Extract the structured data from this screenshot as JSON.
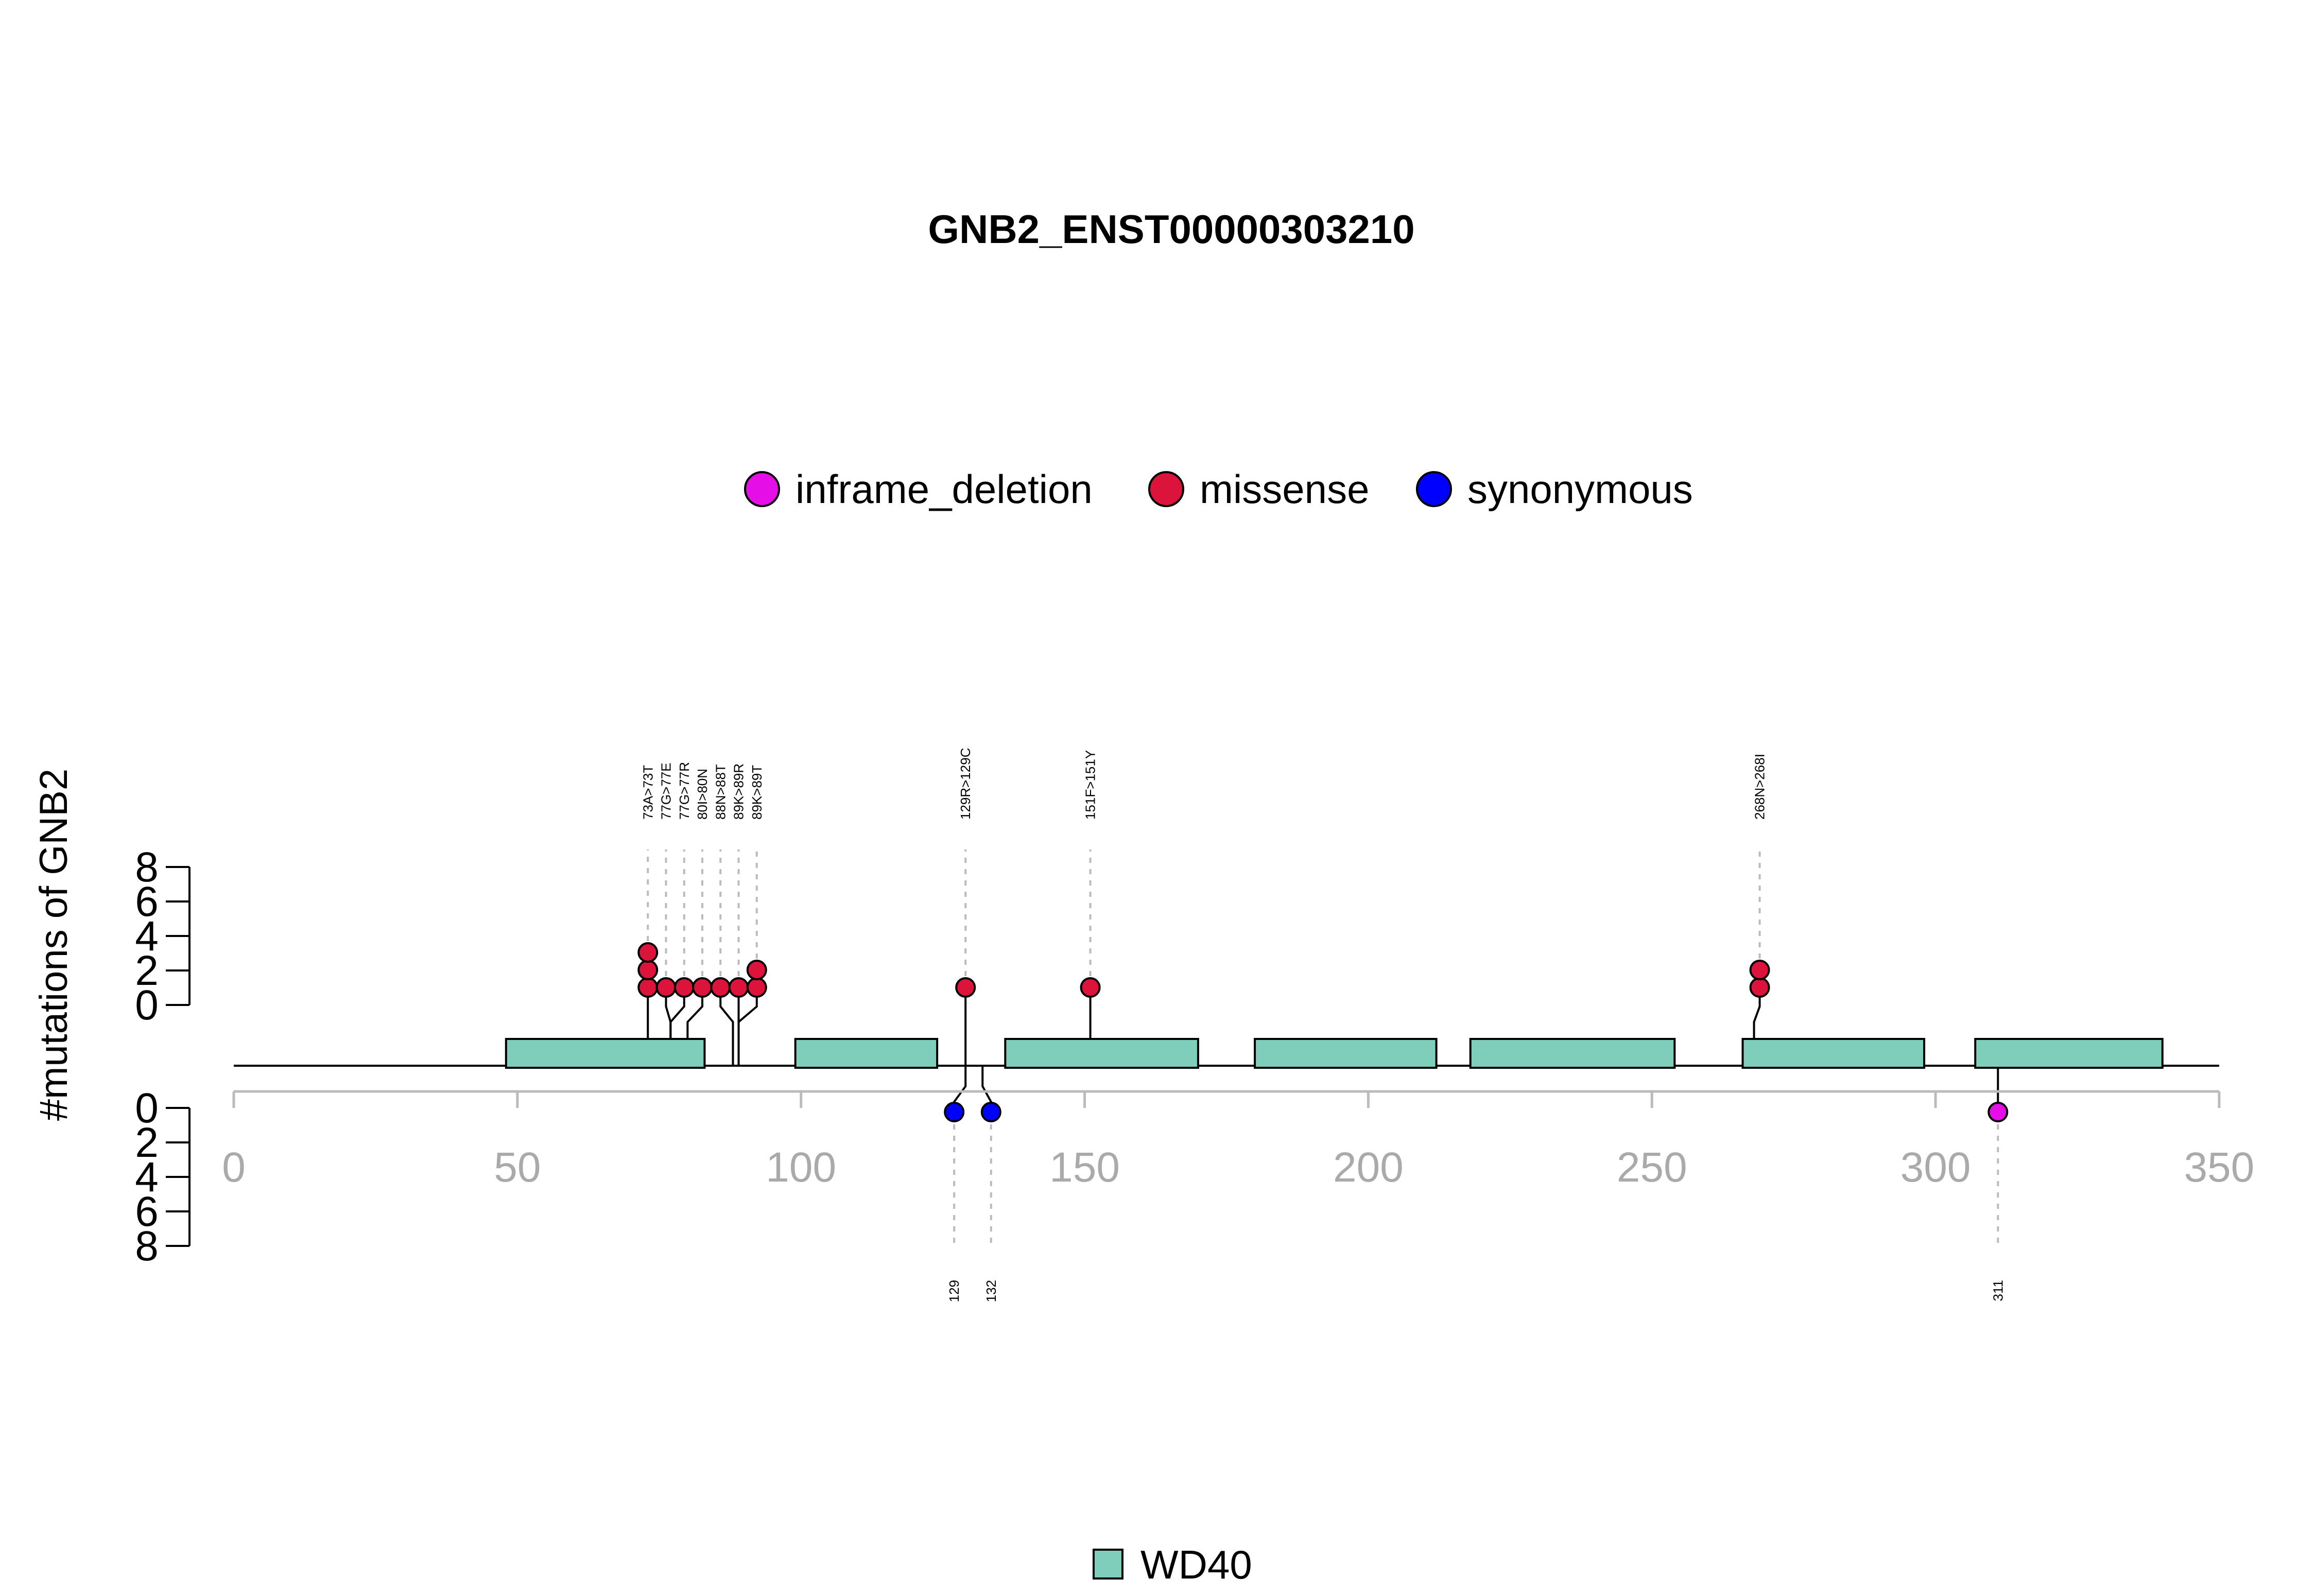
{
  "chart_data": {
    "type": "lollipop",
    "title": "GNB2_ENST00000303210",
    "ylabel": "#mutations of GNB2",
    "xlim": [
      0,
      350
    ],
    "x_ticks": [
      "0",
      "50",
      "100",
      "150",
      "200",
      "250",
      "300",
      "350"
    ],
    "ylim_top": [
      0,
      8
    ],
    "ylim_bottom": [
      0,
      8
    ],
    "y_ticks_top": [
      "0",
      "2",
      "4",
      "6",
      "8"
    ],
    "y_ticks_bottom": [
      "0",
      "2",
      "4",
      "6",
      "8"
    ],
    "protein_length": 350,
    "legend_top": [
      {
        "name": "inframe_deletion",
        "color": "#e60ee6"
      },
      {
        "name": "missense",
        "color": "#dc143c"
      },
      {
        "name": "synonymous",
        "color": "#0000ff"
      }
    ],
    "domain_legend": [
      {
        "name": "WD40",
        "color": "#7fcdbb"
      }
    ],
    "domains": [
      {
        "name": "WD40",
        "start": 48,
        "end": 83
      },
      {
        "name": "WD40",
        "start": 99,
        "end": 124
      },
      {
        "name": "WD40",
        "start": 136,
        "end": 170
      },
      {
        "name": "WD40",
        "start": 180,
        "end": 212
      },
      {
        "name": "WD40",
        "start": 218,
        "end": 254
      },
      {
        "name": "WD40",
        "start": 266,
        "end": 298
      },
      {
        "name": "WD40",
        "start": 307,
        "end": 340
      }
    ],
    "mutations_top": [
      {
        "position": 73,
        "label": "73A>73T",
        "count": 3,
        "type": "missense",
        "head": 73
      },
      {
        "position": 77,
        "label": "77G>77E",
        "count": 1,
        "type": "missense",
        "head": 76.2
      },
      {
        "position": 77,
        "label": "77G>77R",
        "count": 1,
        "type": "missense",
        "head": 79.4
      },
      {
        "position": 80,
        "label": "80I>80N",
        "count": 1,
        "type": "missense",
        "head": 82.6
      },
      {
        "position": 88,
        "label": "88N>88T",
        "count": 1,
        "type": "missense",
        "head": 85.8
      },
      {
        "position": 89,
        "label": "89K>89R",
        "count": 1,
        "type": "missense",
        "head": 89
      },
      {
        "position": 89,
        "label": "89K>89T",
        "count": 2,
        "type": "missense",
        "head": 92.2
      },
      {
        "position": 129,
        "label": "129R>129C",
        "count": 1,
        "type": "missense",
        "head": 129
      },
      {
        "position": 151,
        "label": "151F>151Y",
        "count": 1,
        "type": "missense",
        "head": 151
      },
      {
        "position": 268,
        "label": "268N>268I",
        "count": 2,
        "type": "missense",
        "head": 269
      }
    ],
    "mutations_bottom": [
      {
        "position": 129,
        "label": "129",
        "count": 1,
        "type": "synonymous",
        "head": 127
      },
      {
        "position": 132,
        "label": "132",
        "count": 1,
        "type": "synonymous",
        "head": 133.5
      },
      {
        "position": 311,
        "label": "311",
        "count": 1,
        "type": "inframe_deletion",
        "head": 311
      }
    ]
  }
}
